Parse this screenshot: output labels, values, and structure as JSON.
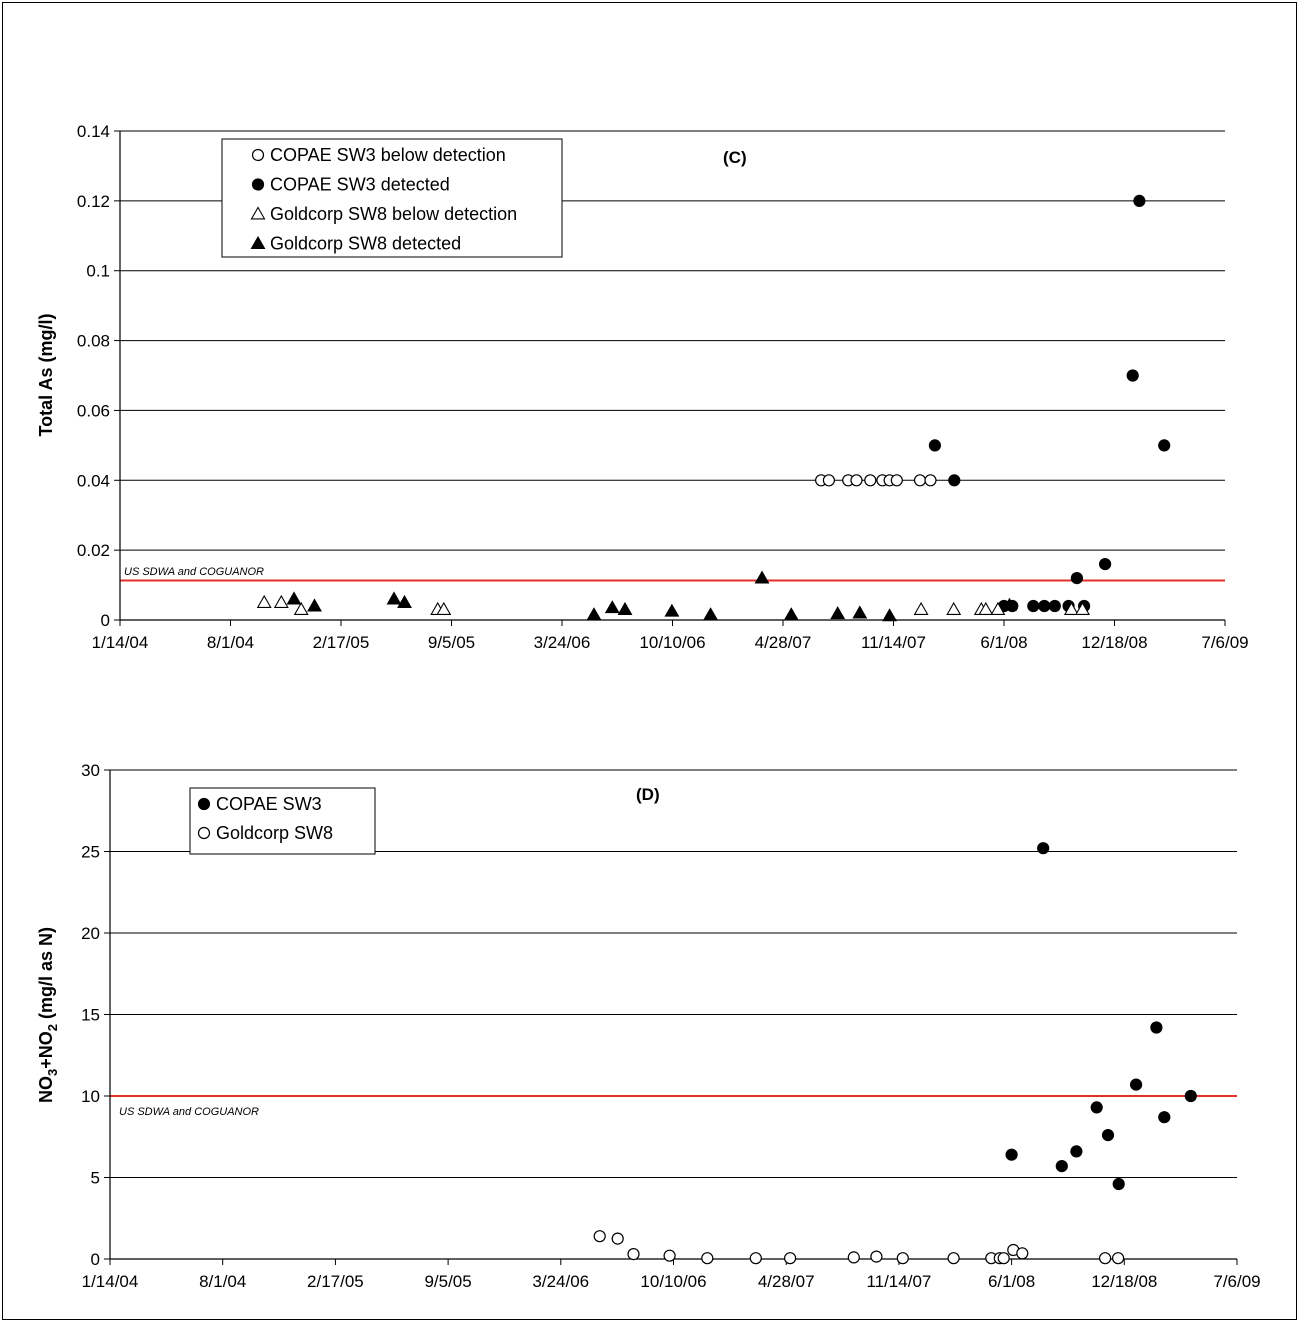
{
  "colors": {
    "reference_line": "#e0302a",
    "marker": "#000000",
    "grid": "#000000"
  },
  "chart_data": [
    {
      "type": "scatter",
      "panel_label": "(C)",
      "ylabel": "Total As (mg/l)",
      "ylim": [
        0,
        0.14
      ],
      "yticks": [
        "0",
        "0.02",
        "0.04",
        "0.06",
        "0.08",
        "0.1",
        "0.12",
        "0.14"
      ],
      "xlim": [
        "1/14/04",
        "7/6/09"
      ],
      "xticks": [
        "1/14/04",
        "8/1/04",
        "2/17/05",
        "9/5/05",
        "3/24/06",
        "10/10/06",
        "4/28/07",
        "11/14/07",
        "6/1/08",
        "12/18/08",
        "7/6/09"
      ],
      "grid": true,
      "legend_position": "top-left",
      "reference_line": {
        "y": 0.0113,
        "label": "US SDWA and COGUANOR"
      },
      "series": [
        {
          "name": "COPAE SW3 below detection",
          "marker": "circle-open",
          "points": [
            [
              "2007-07-06",
              0.04
            ],
            [
              "2007-07-20",
              0.04
            ],
            [
              "2007-08-24",
              0.04
            ],
            [
              "2007-09-08",
              0.04
            ],
            [
              "2007-10-03",
              0.04
            ],
            [
              "2007-10-25",
              0.04
            ],
            [
              "2007-11-07",
              0.04
            ],
            [
              "2007-11-20",
              0.04
            ],
            [
              "2008-01-01",
              0.04
            ],
            [
              "2008-01-20",
              0.04
            ]
          ]
        },
        {
          "name": "COPAE SW3 detected",
          "marker": "circle-filled",
          "points": [
            [
              "2008-01-28",
              0.05
            ],
            [
              "2008-03-03",
              0.04
            ],
            [
              "2008-06-01",
              0.004
            ],
            [
              "2008-06-16",
              0.004
            ],
            [
              "2008-07-24",
              0.004
            ],
            [
              "2008-08-13",
              0.004
            ],
            [
              "2008-09-01",
              0.004
            ],
            [
              "2008-09-26",
              0.004
            ],
            [
              "2008-10-11",
              0.012
            ],
            [
              "2008-10-24",
              0.004
            ],
            [
              "2008-12-01",
              0.016
            ],
            [
              "2009-01-20",
              0.07
            ],
            [
              "2009-02-01",
              0.12
            ],
            [
              "2009-03-18",
              0.05
            ]
          ]
        },
        {
          "name": "Goldcorp SW8 below detection",
          "marker": "triangle-open",
          "points": [
            [
              "2004-10-01",
              0.005
            ],
            [
              "2004-11-01",
              0.005
            ],
            [
              "2004-12-07",
              0.003
            ],
            [
              "2005-08-11",
              0.003
            ],
            [
              "2005-08-22",
              0.003
            ],
            [
              "2008-01-03",
              0.003
            ],
            [
              "2008-03-02",
              0.003
            ],
            [
              "2008-04-21",
              0.003
            ],
            [
              "2008-04-29",
              0.003
            ],
            [
              "2008-05-21",
              0.003
            ],
            [
              "2008-10-01",
              0.003
            ],
            [
              "2008-10-21",
              0.003
            ]
          ]
        },
        {
          "name": "Goldcorp SW8 detected",
          "marker": "triangle-filled",
          "points": [
            [
              "2004-11-24",
              0.006
            ],
            [
              "2004-12-31",
              0.004
            ],
            [
              "2005-05-24",
              0.006
            ],
            [
              "2005-06-12",
              0.005
            ],
            [
              "2006-05-21",
              0.0015
            ],
            [
              "2006-06-23",
              0.0035
            ],
            [
              "2006-07-16",
              0.003
            ],
            [
              "2006-10-09",
              0.0025
            ],
            [
              "2006-12-18",
              0.0015
            ],
            [
              "2007-03-21",
              0.012
            ],
            [
              "2007-05-13",
              0.0015
            ],
            [
              "2007-08-05",
              0.0018
            ],
            [
              "2007-09-14",
              0.002
            ],
            [
              "2007-11-07",
              0.0012
            ],
            [
              "2008-06-11",
              0.0042
            ]
          ]
        }
      ]
    },
    {
      "type": "scatter",
      "panel_label": "(D)",
      "ylabel": "NO3+NO2 (mg/l as N)",
      "ylabel_parts": {
        "a": "NO",
        "a_sub": "3",
        "b": "+NO",
        "b_sub": "2",
        "c": " (mg/l as N)"
      },
      "ylim": [
        0,
        30
      ],
      "yticks": [
        "0",
        "5",
        "10",
        "15",
        "20",
        "25",
        "30"
      ],
      "xlim": [
        "1/14/04",
        "7/6/09"
      ],
      "xticks": [
        "1/14/04",
        "8/1/04",
        "2/17/05",
        "9/5/05",
        "3/24/06",
        "10/10/06",
        "4/28/07",
        "11/14/07",
        "6/1/08",
        "12/18/08",
        "7/6/09"
      ],
      "grid": true,
      "legend_position": "top-left",
      "reference_line": {
        "y": 10,
        "label": "US SDWA and COGUANOR"
      },
      "series": [
        {
          "name": "COPAE SW3",
          "marker": "circle-filled",
          "points": [
            [
              "2008-06-01",
              6.4
            ],
            [
              "2008-07-27",
              25.2
            ],
            [
              "2008-08-29",
              5.7
            ],
            [
              "2008-09-24",
              6.6
            ],
            [
              "2008-10-30",
              9.3
            ],
            [
              "2008-11-19",
              7.6
            ],
            [
              "2008-12-08",
              4.6
            ],
            [
              "2009-01-08",
              10.7
            ],
            [
              "2009-02-13",
              14.2
            ],
            [
              "2009-02-27",
              8.7
            ],
            [
              "2009-04-15",
              10.0
            ]
          ]
        },
        {
          "name": "Goldcorp SW8",
          "marker": "circle-open",
          "points": [
            [
              "2006-06-01",
              1.4
            ],
            [
              "2006-07-03",
              1.25
            ],
            [
              "2006-07-31",
              0.3
            ],
            [
              "2006-10-03",
              0.2
            ],
            [
              "2006-12-09",
              0.05
            ],
            [
              "2007-03-05",
              0.05
            ],
            [
              "2007-05-05",
              0.05
            ],
            [
              "2007-08-26",
              0.1
            ],
            [
              "2007-10-05",
              0.15
            ],
            [
              "2007-11-21",
              0.05
            ],
            [
              "2008-02-19",
              0.05
            ],
            [
              "2008-04-26",
              0.05
            ],
            [
              "2008-05-11",
              0.05
            ],
            [
              "2008-05-18",
              0.05
            ],
            [
              "2008-06-04",
              0.55
            ],
            [
              "2008-06-20",
              0.35
            ],
            [
              "2008-11-14",
              0.05
            ],
            [
              "2008-12-07",
              0.05
            ]
          ]
        }
      ]
    }
  ]
}
